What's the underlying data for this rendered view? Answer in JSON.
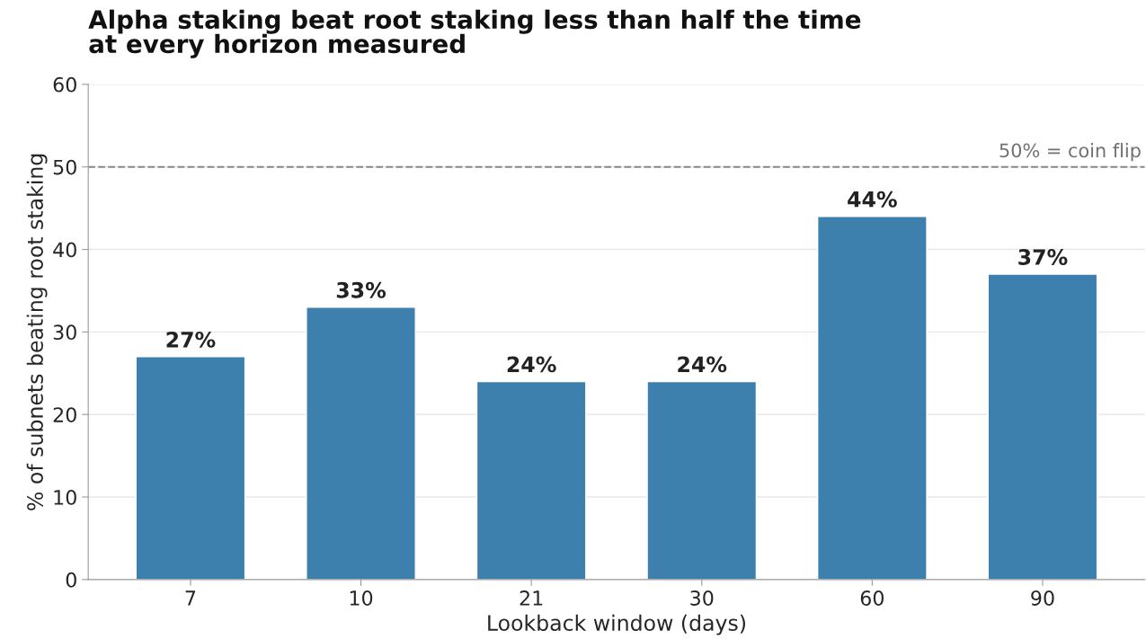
{
  "chart_data": {
    "type": "bar",
    "title": "Alpha staking beat root staking less than half the time\nat every horizon measured",
    "xlabel": "Lookback window (days)",
    "ylabel": "% of subnets beating root staking",
    "categories": [
      "7",
      "10",
      "21",
      "30",
      "60",
      "90"
    ],
    "values": [
      27,
      33,
      24,
      24,
      44,
      37
    ],
    "value_labels": [
      "27%",
      "33%",
      "24%",
      "24%",
      "44%",
      "37%"
    ],
    "color": "#3d80ae",
    "ylim": [
      0,
      60
    ],
    "yticks": [
      0,
      10,
      20,
      30,
      40,
      50,
      60
    ],
    "grid": "y",
    "ref_lines": [
      {
        "axis": "y",
        "value": 50,
        "label": "50% = coin flip",
        "color": "#888888",
        "line_style": "dashed"
      }
    ]
  }
}
